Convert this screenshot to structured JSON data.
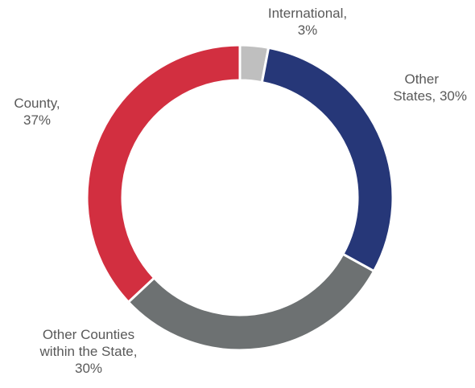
{
  "chart_data": {
    "type": "pie",
    "variant": "donut",
    "legend": "none",
    "slices": [
      {
        "label": "International",
        "value": 3,
        "value_text": "3%",
        "color": "#bfbfbf"
      },
      {
        "label": "Other States",
        "value": 30,
        "value_text": "30%",
        "color": "#263778"
      },
      {
        "label": "Other Counties within the State",
        "value": 30,
        "value_text": "30%",
        "color": "#6d7172"
      },
      {
        "label": "County",
        "value": 37,
        "value_text": "37%",
        "color": "#d22f40"
      }
    ]
  },
  "labels": {
    "international": [
      "International,",
      "3%"
    ],
    "other_states": [
      "Other",
      "States, 30%"
    ],
    "other_counties": [
      "Other Counties",
      "within the State,",
      "30%"
    ],
    "county": [
      "County,",
      "37%"
    ]
  }
}
